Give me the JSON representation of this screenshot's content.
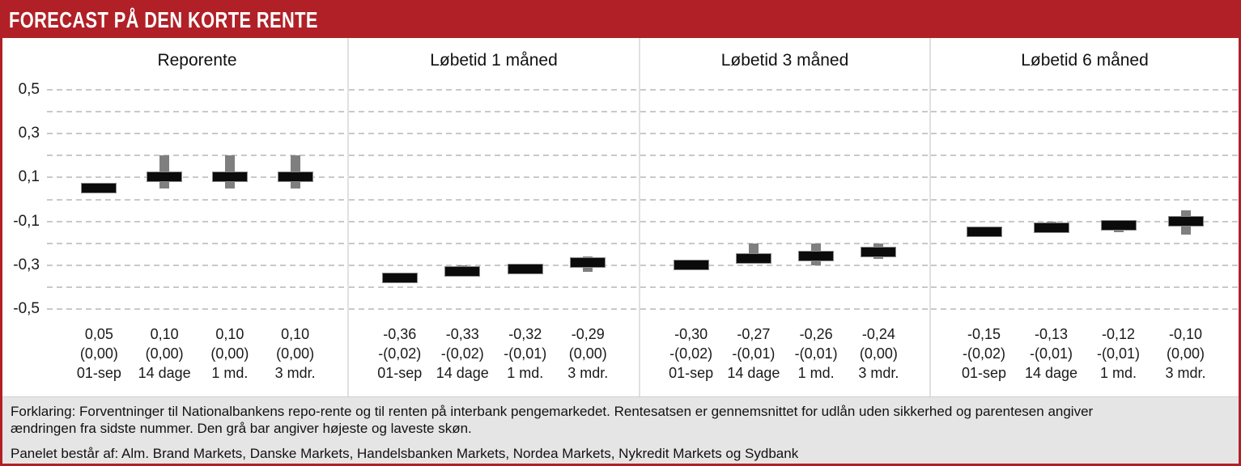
{
  "header": {
    "title": "FORECAST PÅ DEN KORTE RENTE"
  },
  "colors": {
    "accent_red": "#b02026",
    "bar_black": "#0b0b0b",
    "range_gray": "#7f7f7f",
    "footer_bg": "#e6e5e5",
    "gridline": "#c9c9c9",
    "divider": "#e0e0e0"
  },
  "y_axis": {
    "labels": [
      "0,5",
      "0,3",
      "0,1",
      "-0,1",
      "-0,3",
      "-0,5"
    ],
    "label_values": [
      0.5,
      0.3,
      0.1,
      -0.1,
      -0.3,
      -0.5
    ],
    "min": -0.5,
    "max": 0.5,
    "grid_step": 0.1
  },
  "chart_data": {
    "type": "bar",
    "subtype": "forecast-range-bars",
    "ylim": [
      -0.5,
      0.5
    ],
    "grid": "dashed horizontal every 0.1",
    "categories": [
      "01-sep",
      "14 dage",
      "1 md.",
      "3 mdr."
    ],
    "panels": [
      {
        "title": "Reporente",
        "points": [
          {
            "period": "01-sep",
            "value": 0.05,
            "low": 0.05,
            "high": 0.05,
            "value_label": "0,05",
            "change_label": "(0,00)"
          },
          {
            "period": "14 dage",
            "value": 0.1,
            "low": 0.05,
            "high": 0.2,
            "value_label": "0,10",
            "change_label": "(0,00)"
          },
          {
            "period": "1 md.",
            "value": 0.1,
            "low": 0.05,
            "high": 0.2,
            "value_label": "0,10",
            "change_label": "(0,00)"
          },
          {
            "period": "3 mdr.",
            "value": 0.1,
            "low": 0.05,
            "high": 0.2,
            "value_label": "0,10",
            "change_label": "(0,00)"
          }
        ]
      },
      {
        "title": "Løbetid 1 måned",
        "points": [
          {
            "period": "01-sep",
            "value": -0.36,
            "low": -0.36,
            "high": -0.36,
            "value_label": "-0,36",
            "change_label": "-(0,02)"
          },
          {
            "period": "14 dage",
            "value": -0.33,
            "low": -0.35,
            "high": -0.3,
            "value_label": "-0,33",
            "change_label": "-(0,02)"
          },
          {
            "period": "1 md.",
            "value": -0.32,
            "low": -0.32,
            "high": -0.32,
            "value_label": "-0,32",
            "change_label": "-(0,01)"
          },
          {
            "period": "3 mdr.",
            "value": -0.29,
            "low": -0.33,
            "high": -0.26,
            "value_label": "-0,29",
            "change_label": "(0,00)"
          }
        ]
      },
      {
        "title": "Løbetid 3 måned",
        "points": [
          {
            "period": "01-sep",
            "value": -0.3,
            "low": -0.3,
            "high": -0.3,
            "value_label": "-0,30",
            "change_label": "-(0,02)"
          },
          {
            "period": "14 dage",
            "value": -0.27,
            "low": -0.28,
            "high": -0.2,
            "value_label": "-0,27",
            "change_label": "-(0,01)"
          },
          {
            "period": "1 md.",
            "value": -0.26,
            "low": -0.3,
            "high": -0.2,
            "value_label": "-0,26",
            "change_label": "-(0,01)"
          },
          {
            "period": "3 mdr.",
            "value": -0.24,
            "low": -0.27,
            "high": -0.2,
            "value_label": "-0,24",
            "change_label": "(0,00)"
          }
        ]
      },
      {
        "title": "Løbetid 6 måned",
        "points": [
          {
            "period": "01-sep",
            "value": -0.15,
            "low": -0.15,
            "high": -0.15,
            "value_label": "-0,15",
            "change_label": "-(0,02)"
          },
          {
            "period": "14 dage",
            "value": -0.13,
            "low": -0.14,
            "high": -0.1,
            "value_label": "-0,13",
            "change_label": "-(0,01)"
          },
          {
            "period": "1 md.",
            "value": -0.12,
            "low": -0.15,
            "high": -0.11,
            "value_label": "-0,12",
            "change_label": "-(0,01)"
          },
          {
            "period": "3 mdr.",
            "value": -0.1,
            "low": -0.16,
            "high": -0.05,
            "value_label": "-0,10",
            "change_label": "(0,00)"
          }
        ]
      }
    ]
  },
  "footer": {
    "explanation": "Forklaring: Forventninger til Nationalbankens repo-rente og til renten på interbank pengemarkedet. Rentesatsen er gennemsnittet for udlån uden sikkerhed og parentesen angiver ændringen fra sidste nummer. Den grå bar angiver højeste og laveste skøn.",
    "panel": "Panelet består af: Alm. Brand Markets, Danske Markets, Handelsbanken Markets, Nordea Markets, Nykredit Markets og Sydbank"
  }
}
